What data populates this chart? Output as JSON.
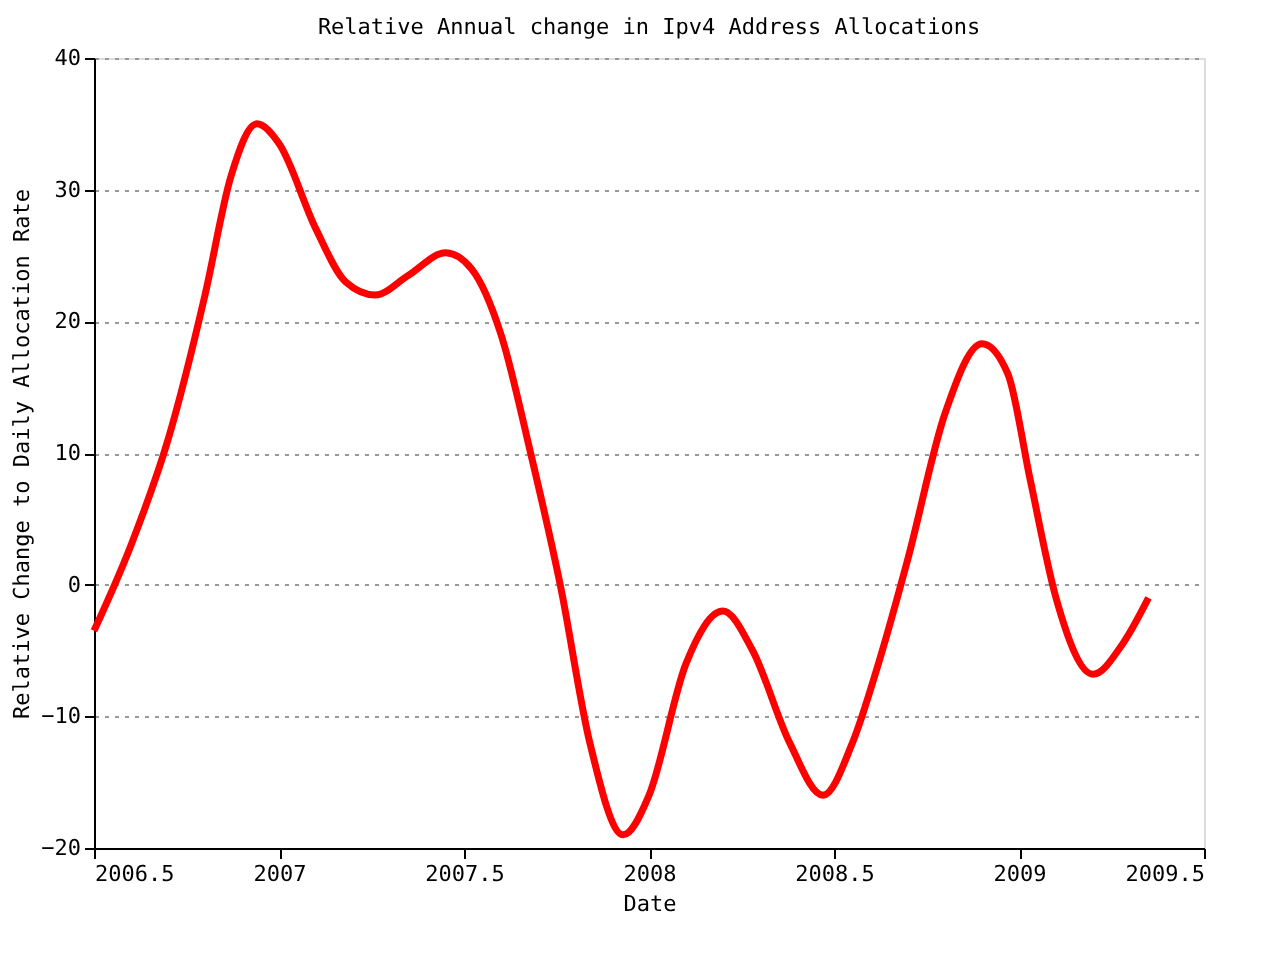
{
  "chart_data": {
    "type": "line",
    "title": "Relative Annual change in Ipv4 Address Allocations",
    "xlabel": "Date",
    "ylabel": "Relative Change to Daily Allocation Rate",
    "x": [
      2006.5,
      2006.6,
      2006.7,
      2006.8,
      2006.87,
      2006.94,
      2007.0,
      2007.1,
      2007.18,
      2007.26,
      2007.35,
      2007.45,
      2007.52,
      2007.6,
      2007.68,
      2007.76,
      2007.84,
      2007.93,
      2008.0,
      2008.1,
      2008.2,
      2008.28,
      2008.38,
      2008.47,
      2008.55,
      2008.62,
      2008.7,
      2008.8,
      2008.9,
      2008.97,
      2009.03,
      2009.1,
      2009.2,
      2009.28,
      2009.35
    ],
    "series": [
      {
        "color": "#ff0000",
        "values": [
          -3.5,
          3,
          11,
          22,
          31,
          35,
          33.5,
          27,
          23,
          22,
          23.5,
          25.2,
          24,
          19,
          10,
          0,
          -12,
          -19,
          -16,
          -6,
          -2,
          -5,
          -12,
          -16,
          -12,
          -6,
          2,
          13,
          18.3,
          16,
          8,
          -1,
          -6.8,
          -4.5,
          -1
        ]
      }
    ],
    "xlim": [
      2006.5,
      2009.5
    ],
    "xticks": [
      2006.5,
      2007,
      2007.5,
      2008,
      2008.5,
      2009,
      2009.5
    ],
    "ylim": [
      -20,
      40
    ],
    "yticks": [
      -20,
      -10,
      0,
      10,
      20,
      30,
      40
    ],
    "grid": "y",
    "marker": "none",
    "line_style": "solid"
  }
}
